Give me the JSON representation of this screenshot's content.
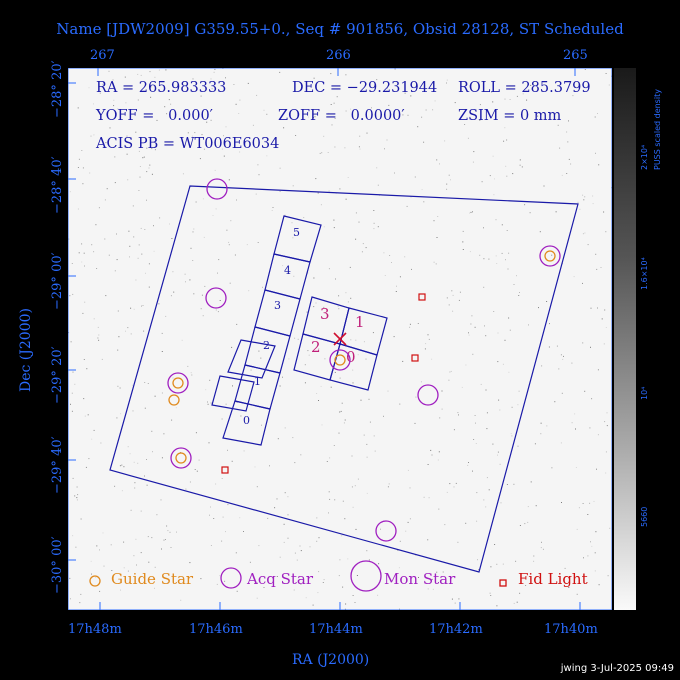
{
  "title": "Name [JDW2009] G359.55+0., Seq # 901856, Obsid 28128, ST Scheduled",
  "axes": {
    "xlabel": "RA (J2000)",
    "ylabel": "Dec (J2000)",
    "top_ticks": [
      "267",
      "266",
      "265"
    ],
    "bottom_ticks": [
      "17h48m",
      "17h46m",
      "17h44m",
      "17h42m",
      "17h40m"
    ],
    "left_ticks": [
      "−28° 20′",
      "−28° 40′",
      "−29° 00′",
      "−29° 20′",
      "−29° 40′",
      "−30° 00′"
    ]
  },
  "info": {
    "ra": "RA = 265.983333",
    "dec": "DEC = −29.231944",
    "roll": "ROLL = 285.3799",
    "yoff": "YOFF =   0.000′",
    "zoff": "ZOFF =   0.0000′",
    "zsim": "ZSIM = 0 mm",
    "acis": "ACIS PB = WT006E6034"
  },
  "ccds": {
    "acis_s": [
      "0",
      "1",
      "2",
      "3",
      "4",
      "5"
    ],
    "acis_i": [
      "0",
      "1",
      "2",
      "3"
    ]
  },
  "legend": {
    "guide": "Guide Star",
    "acq": "Acq Star",
    "mon": "Mon Star",
    "fid": "Fid Light"
  },
  "colorbar": {
    "title": "PUSS scaled density",
    "ticks": [
      "2×10⁴",
      "1.6×10⁴",
      "10⁴",
      "5660"
    ]
  },
  "colors": {
    "axis": "#2a6bff",
    "field": "#1a1aa8",
    "guide": "#e08a1e",
    "acq": "#a020c0",
    "mon": "#a020c0",
    "fid": "#d01010",
    "chip_label_i": "#c0207a"
  },
  "footer": "jwing  3-Jul-2025 09:49"
}
